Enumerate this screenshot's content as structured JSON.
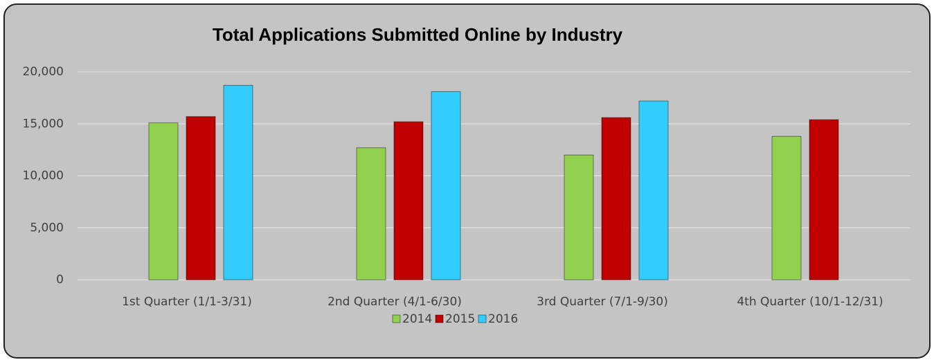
{
  "chart_data": {
    "type": "bar",
    "title": "Total Applications Submitted Online by Industry",
    "categories": [
      "1st Quarter (1/1-3/31)",
      "2nd Quarter (4/1-6/30)",
      "3rd Quarter (7/1-9/30)",
      "4th Quarter (10/1-12/31)"
    ],
    "series": [
      {
        "name": "2014",
        "color": "#92d050",
        "values": [
          15100,
          12700,
          12000,
          13800
        ]
      },
      {
        "name": "2015",
        "color": "#c00000",
        "values": [
          15700,
          15200,
          15600,
          15400
        ]
      },
      {
        "name": "2016",
        "color": "#33ccff",
        "values": [
          18700,
          18100,
          17200,
          null
        ]
      }
    ],
    "ylim": [
      0,
      20000
    ],
    "yticks": [
      0,
      {
        "value": 5000,
        "label": "5,000"
      },
      {
        "value": 10000,
        "label": "10,000"
      },
      {
        "value": 15000,
        "label": "15,000"
      },
      {
        "value": 20000,
        "label": "20,000"
      }
    ],
    "grid": true,
    "legend": "bottom"
  }
}
